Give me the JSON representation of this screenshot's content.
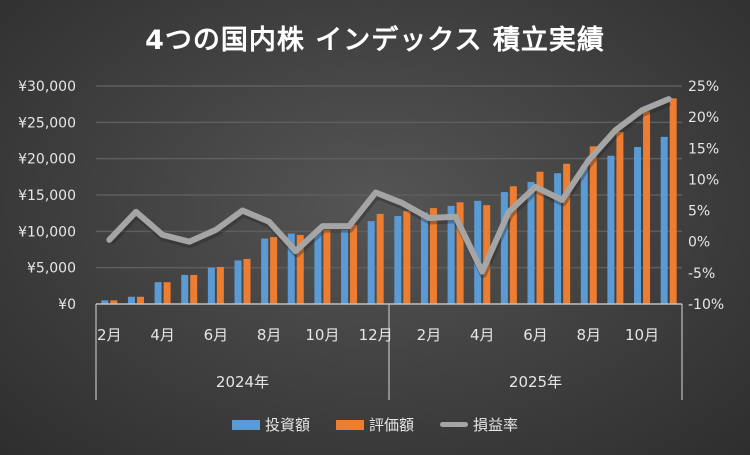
{
  "chart_data": {
    "type": "bar+line",
    "title": "4つの国内株 インデックス 積立実績",
    "categories": [
      "2024-02",
      "2024-03",
      "2024-04",
      "2024-05",
      "2024-06",
      "2024-07",
      "2024-08",
      "2024-09",
      "2024-10",
      "2024-11",
      "2024-12",
      "2025-01",
      "2025-02",
      "2025-03",
      "2025-04",
      "2025-05",
      "2025-06",
      "2025-07",
      "2025-08",
      "2025-09",
      "2025-10",
      "2025-11"
    ],
    "month_labels": [
      "2月",
      "",
      "4月",
      "",
      "6月",
      "",
      "8月",
      "",
      "10月",
      "",
      "12月",
      "",
      "2月",
      "",
      "4月",
      "",
      "6月",
      "",
      "8月",
      "",
      "10月",
      ""
    ],
    "year_labels": [
      "2024年",
      "2025年"
    ],
    "series": [
      {
        "name": "投資額",
        "type": "bar",
        "axis": "left",
        "color": "#5b9bd5",
        "values": [
          500,
          1000,
          3000,
          4000,
          5000,
          6000,
          9000,
          9700,
          10200,
          10200,
          11400,
          12100,
          12600,
          13500,
          14200,
          15400,
          16800,
          18000,
          19000,
          20400,
          21600,
          23000
        ]
      },
      {
        "name": "評価額",
        "type": "bar",
        "axis": "left",
        "color": "#ed7d31",
        "values": [
          500,
          1000,
          3000,
          4000,
          5100,
          6200,
          9200,
          9500,
          10200,
          10900,
          12400,
          12800,
          13200,
          14000,
          13600,
          16200,
          18200,
          19300,
          21700,
          23700,
          26500,
          28300
        ]
      },
      {
        "name": "損益率",
        "type": "line",
        "axis": "right",
        "color": "#a5a5a5",
        "values": [
          0.3,
          4.8,
          1.1,
          0.0,
          1.9,
          5.0,
          3.2,
          -1.5,
          2.5,
          2.5,
          7.9,
          6.2,
          3.8,
          4.0,
          -4.8,
          4.8,
          8.8,
          6.7,
          13.1,
          17.9,
          21.1,
          22.9
        ]
      }
    ],
    "left_axis": {
      "ylim": [
        0,
        30000
      ],
      "ticks": [
        0,
        5000,
        10000,
        15000,
        20000,
        25000,
        30000
      ],
      "tick_labels": [
        "¥0",
        "¥5,000",
        "¥10,000",
        "¥15,000",
        "¥20,000",
        "¥25,000",
        "¥30,000"
      ]
    },
    "right_axis": {
      "ylim": [
        -10,
        25
      ],
      "ticks": [
        -10,
        -5,
        0,
        5,
        10,
        15,
        20,
        25
      ],
      "tick_labels": [
        "-10%",
        "-5%",
        "0%",
        "5%",
        "10%",
        "15%",
        "20%",
        "25%"
      ]
    },
    "legend": "bottom",
    "grid": true
  }
}
